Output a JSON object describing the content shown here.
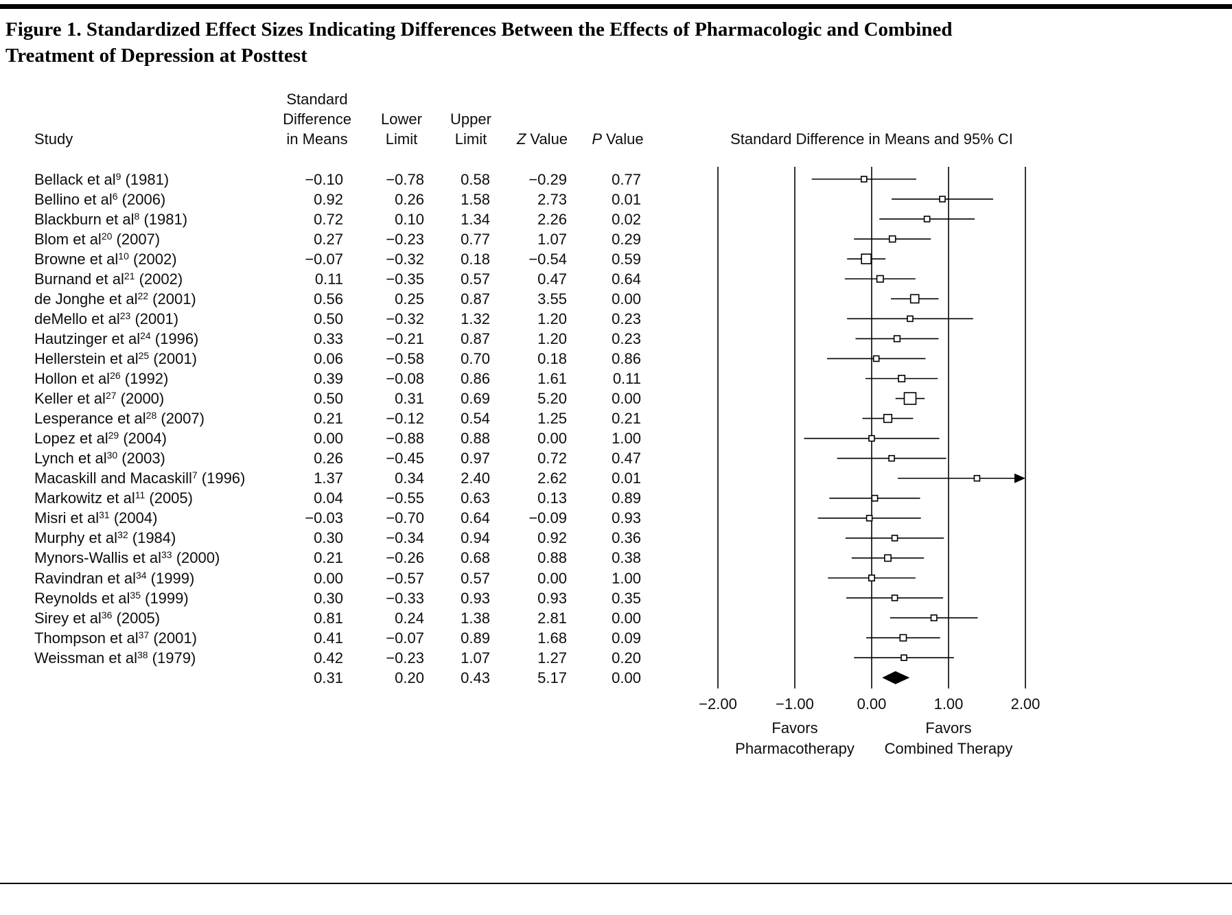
{
  "figure": {
    "title": "Figure 1. Standardized Effect Sizes Indicating Differences Between the Effects of Pharmacologic and Combined Treatment of Depression at Posttest"
  },
  "table": {
    "headers": {
      "study": "Study",
      "std_diff": "Standard\nDifference\nin Means",
      "lower": "Lower\nLimit",
      "upper": "Upper\nLimit",
      "z_letter": "Z",
      "z_word": "Value",
      "p_letter": "P",
      "p_word": "Value",
      "ci": "Standard Difference in Means and 95% CI"
    }
  },
  "chart_data": {
    "type": "forest",
    "title": "Standard Difference in Means and 95% CI",
    "xlabel": "Standard Difference in Means",
    "xlim": [
      -2,
      2
    ],
    "xticks": [
      -2,
      -1,
      0,
      1,
      2
    ],
    "favors_left": "Favors\nPharmacotherapy",
    "favors_right": "Favors\nCombined Therapy",
    "studies": [
      {
        "name": "Bellack et al",
        "ref": "9",
        "year": "1981",
        "mean": -0.1,
        "lower": -0.78,
        "upper": 0.58,
        "z": -0.29,
        "p": 0.77
      },
      {
        "name": "Bellino et al",
        "ref": "6",
        "year": "2006",
        "mean": 0.92,
        "lower": 0.26,
        "upper": 1.58,
        "z": 2.73,
        "p": 0.01
      },
      {
        "name": "Blackburn et al",
        "ref": "8",
        "year": "1981",
        "mean": 0.72,
        "lower": 0.1,
        "upper": 1.34,
        "z": 2.26,
        "p": 0.02
      },
      {
        "name": "Blom et al",
        "ref": "20",
        "year": "2007",
        "mean": 0.27,
        "lower": -0.23,
        "upper": 0.77,
        "z": 1.07,
        "p": 0.29
      },
      {
        "name": "Browne et al",
        "ref": "10",
        "year": "2002",
        "mean": -0.07,
        "lower": -0.32,
        "upper": 0.18,
        "z": -0.54,
        "p": 0.59
      },
      {
        "name": "Burnand et al",
        "ref": "21",
        "year": "2002",
        "mean": 0.11,
        "lower": -0.35,
        "upper": 0.57,
        "z": 0.47,
        "p": 0.64
      },
      {
        "name": "de Jonghe et al",
        "ref": "22",
        "year": "2001",
        "mean": 0.56,
        "lower": 0.25,
        "upper": 0.87,
        "z": 3.55,
        "p": 0.0
      },
      {
        "name": "deMello et al",
        "ref": "23",
        "year": "2001",
        "mean": 0.5,
        "lower": -0.32,
        "upper": 1.32,
        "z": 1.2,
        "p": 0.23
      },
      {
        "name": "Hautzinger et al",
        "ref": "24",
        "year": "1996",
        "mean": 0.33,
        "lower": -0.21,
        "upper": 0.87,
        "z": 1.2,
        "p": 0.23
      },
      {
        "name": "Hellerstein et al",
        "ref": "25",
        "year": "2001",
        "mean": 0.06,
        "lower": -0.58,
        "upper": 0.7,
        "z": 0.18,
        "p": 0.86
      },
      {
        "name": "Hollon et al",
        "ref": "26",
        "year": "1992",
        "mean": 0.39,
        "lower": -0.08,
        "upper": 0.86,
        "z": 1.61,
        "p": 0.11
      },
      {
        "name": "Keller et al",
        "ref": "27",
        "year": "2000",
        "mean": 0.5,
        "lower": 0.31,
        "upper": 0.69,
        "z": 5.2,
        "p": 0.0
      },
      {
        "name": "Lesperance et al",
        "ref": "28",
        "year": "2007",
        "mean": 0.21,
        "lower": -0.12,
        "upper": 0.54,
        "z": 1.25,
        "p": 0.21
      },
      {
        "name": "Lopez et al",
        "ref": "29",
        "year": "2004",
        "mean": 0.0,
        "lower": -0.88,
        "upper": 0.88,
        "z": 0.0,
        "p": 1.0
      },
      {
        "name": "Lynch et al",
        "ref": "30",
        "year": "2003",
        "mean": 0.26,
        "lower": -0.45,
        "upper": 0.97,
        "z": 0.72,
        "p": 0.47
      },
      {
        "name": "Macaskill and Macaskill",
        "ref": "7",
        "year": "1996",
        "mean": 1.37,
        "lower": 0.34,
        "upper": 2.4,
        "z": 2.62,
        "p": 0.01
      },
      {
        "name": "Markowitz et al",
        "ref": "11",
        "year": "2005",
        "mean": 0.04,
        "lower": -0.55,
        "upper": 0.63,
        "z": 0.13,
        "p": 0.89
      },
      {
        "name": "Misri et al",
        "ref": "31",
        "year": "2004",
        "mean": -0.03,
        "lower": -0.7,
        "upper": 0.64,
        "z": -0.09,
        "p": 0.93
      },
      {
        "name": "Murphy et al",
        "ref": "32",
        "year": "1984",
        "mean": 0.3,
        "lower": -0.34,
        "upper": 0.94,
        "z": 0.92,
        "p": 0.36
      },
      {
        "name": "Mynors-Wallis et al",
        "ref": "33",
        "year": "2000",
        "mean": 0.21,
        "lower": -0.26,
        "upper": 0.68,
        "z": 0.88,
        "p": 0.38
      },
      {
        "name": "Ravindran et al",
        "ref": "34",
        "year": "1999",
        "mean": 0.0,
        "lower": -0.57,
        "upper": 0.57,
        "z": 0.0,
        "p": 1.0
      },
      {
        "name": "Reynolds et al",
        "ref": "35",
        "year": "1999",
        "mean": 0.3,
        "lower": -0.33,
        "upper": 0.93,
        "z": 0.93,
        "p": 0.35
      },
      {
        "name": "Sirey et al",
        "ref": "36",
        "year": "2005",
        "mean": 0.81,
        "lower": 0.24,
        "upper": 1.38,
        "z": 2.81,
        "p": 0.0
      },
      {
        "name": "Thompson et al",
        "ref": "37",
        "year": "2001",
        "mean": 0.41,
        "lower": -0.07,
        "upper": 0.89,
        "z": 1.68,
        "p": 0.09
      },
      {
        "name": "Weissman et al",
        "ref": "38",
        "year": "1979",
        "mean": 0.42,
        "lower": -0.23,
        "upper": 1.07,
        "z": 1.27,
        "p": 0.2
      }
    ],
    "summary": {
      "mean": 0.31,
      "lower": 0.2,
      "upper": 0.43,
      "z": 5.17,
      "p": 0.0
    }
  }
}
